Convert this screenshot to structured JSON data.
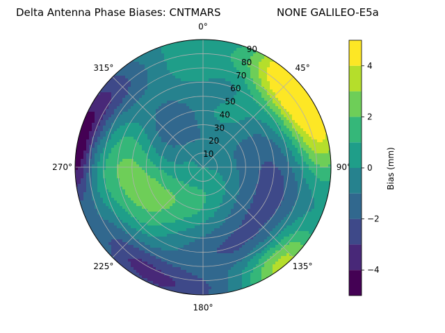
{
  "chart_data": {
    "type": "heatmap",
    "projection": "polar",
    "title_left": "Delta Antenna Phase Biases: CNTMARS",
    "title_right": "NONE GALILEO-E5a",
    "theta_direction": "clockwise",
    "theta_zero": "top",
    "theta_tick_labels": [
      "0°",
      "45°",
      "90°",
      "135°",
      "180°",
      "225°",
      "270°",
      "315°"
    ],
    "theta_tick_values": [
      0,
      45,
      90,
      135,
      180,
      225,
      270,
      315
    ],
    "r_tick_labels": [
      "10",
      "20",
      "30",
      "40",
      "50",
      "60",
      "70",
      "80",
      "90"
    ],
    "r_tick_values": [
      10,
      20,
      30,
      40,
      50,
      60,
      70,
      80,
      90
    ],
    "r_range": [
      0,
      90
    ],
    "grid": true,
    "colormap": "viridis",
    "colorbar": {
      "label": "Bias (mm)",
      "range": [
        -5,
        5
      ],
      "levels": [
        -5,
        -4,
        -3,
        -2,
        -1,
        0,
        1,
        2,
        3,
        4,
        5
      ],
      "tick_labels": [
        "−4",
        "−2",
        "0",
        "2",
        "4"
      ],
      "tick_values": [
        -4,
        -2,
        0,
        2,
        4
      ],
      "level_colors": [
        "#440154",
        "#482878",
        "#3e4989",
        "#31688e",
        "#26828e",
        "#1f9e89",
        "#35b779",
        "#6ece58",
        "#b5de2b",
        "#fde725"
      ]
    },
    "field_anomalies": [
      {
        "azimuth_deg": 270,
        "zenith_deg": 58,
        "bias_mm": 2.6,
        "spread_az": 26,
        "spread_r": 22
      },
      {
        "azimuth_deg": 230,
        "zenith_deg": 38,
        "bias_mm": 1.6,
        "spread_az": 28,
        "spread_r": 18
      },
      {
        "azimuth_deg": 180,
        "zenith_deg": 25,
        "bias_mm": 0.8,
        "spread_az": 40,
        "spread_r": 20
      },
      {
        "azimuth_deg": 48,
        "zenith_deg": 88,
        "bias_mm": 6.5,
        "spread_az": 16,
        "spread_r": 16
      },
      {
        "azimuth_deg": 78,
        "zenith_deg": 85,
        "bias_mm": 3.2,
        "spread_az": 16,
        "spread_r": 14
      },
      {
        "azimuth_deg": 142,
        "zenith_deg": 88,
        "bias_mm": 4.0,
        "spread_az": 14,
        "spread_r": 12
      },
      {
        "azimuth_deg": 30,
        "zenith_deg": 40,
        "bias_mm": 1.2,
        "spread_az": 24,
        "spread_r": 16
      },
      {
        "azimuth_deg": 355,
        "zenith_deg": 78,
        "bias_mm": 1.2,
        "spread_az": 18,
        "spread_r": 14
      },
      {
        "azimuth_deg": 300,
        "zenith_deg": 82,
        "bias_mm": -2.6,
        "spread_az": 22,
        "spread_r": 12
      },
      {
        "azimuth_deg": 275,
        "zenith_deg": 90,
        "bias_mm": -4.4,
        "spread_az": 16,
        "spread_r": 8
      },
      {
        "azimuth_deg": 320,
        "zenith_deg": 35,
        "bias_mm": -2.2,
        "spread_az": 30,
        "spread_r": 16
      },
      {
        "azimuth_deg": 20,
        "zenith_deg": 60,
        "bias_mm": -1.2,
        "spread_az": 14,
        "spread_r": 12
      },
      {
        "azimuth_deg": 100,
        "zenith_deg": 55,
        "bias_mm": -2.0,
        "spread_az": 26,
        "spread_r": 18
      },
      {
        "azimuth_deg": 160,
        "zenith_deg": 60,
        "bias_mm": -2.0,
        "spread_az": 26,
        "spread_r": 14
      },
      {
        "azimuth_deg": 215,
        "zenith_deg": 80,
        "bias_mm": -2.2,
        "spread_az": 20,
        "spread_r": 10
      },
      {
        "azimuth_deg": 190,
        "zenith_deg": 88,
        "bias_mm": -1.8,
        "spread_az": 22,
        "spread_r": 8
      },
      {
        "azimuth_deg": 60,
        "zenith_deg": 30,
        "bias_mm": -0.8,
        "spread_az": 30,
        "spread_r": 16
      }
    ],
    "background_bias_mm": -0.3
  }
}
